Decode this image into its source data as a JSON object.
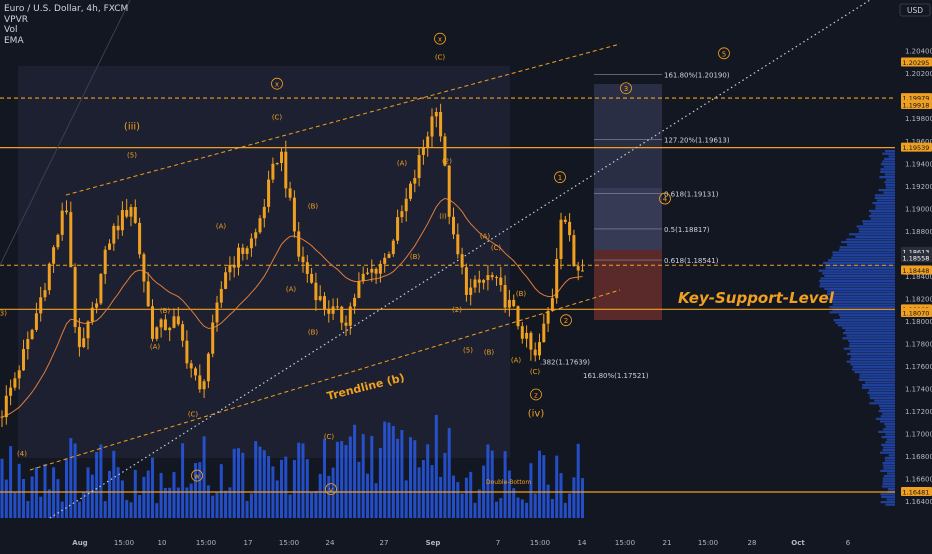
{
  "header": {
    "symbol_line": "Euro / U.S. Dollar, 4h, FXCM",
    "indicators": [
      "VPVR",
      "Vol",
      "EMA"
    ],
    "currency_button": "USD"
  },
  "chart_data": {
    "type": "candlestick",
    "title": "Euro / U.S. Dollar, 4h, FXCM",
    "ylim": [
      1.1625,
      1.2085
    ],
    "x_labels": [
      {
        "label": "Aug",
        "bold": true
      },
      {
        "label": "15:00"
      },
      {
        "label": "10"
      },
      {
        "label": "15:00"
      },
      {
        "label": "17"
      },
      {
        "label": "15:00"
      },
      {
        "label": "24"
      },
      {
        "label": "27"
      },
      {
        "label": "Sep",
        "bold": true
      },
      {
        "label": "7"
      },
      {
        "label": "15:00"
      },
      {
        "label": "14"
      },
      {
        "label": "15:00"
      },
      {
        "label": "21"
      },
      {
        "label": "15:00"
      },
      {
        "label": "28"
      },
      {
        "label": "Oct",
        "bold": true
      },
      {
        "label": "6"
      }
    ],
    "price_ticks": [
      "1.20400",
      "1.20200",
      "1.20000",
      "1.19800",
      "1.19600",
      "1.19400",
      "1.19200",
      "1.19000",
      "1.18800",
      "1.18600",
      "1.18400",
      "1.18200",
      "1.18000",
      "1.17800",
      "1.17600",
      "1.17400",
      "1.17200",
      "1.17000",
      "1.16800",
      "1.16600",
      "1.16400"
    ],
    "price_badges": [
      {
        "value": "1.20295",
        "color": "#f0a020"
      },
      {
        "value": "1.19979",
        "color": "#f0a020"
      },
      {
        "value": "1.19918",
        "color": "#f0a020"
      },
      {
        "value": "1.19539",
        "color": "#f0a020"
      },
      {
        "value": "1.18613",
        "color": "#2a2e39"
      },
      {
        "value": "1.18558",
        "color": "#2a2e39"
      },
      {
        "value": "02:28:41",
        "color": "#2a2e39"
      },
      {
        "value": "1.18448",
        "color": "#f0a020"
      },
      {
        "value": "1.18103",
        "color": "#f0a020"
      },
      {
        "value": "1.18070",
        "color": "#f0a020"
      },
      {
        "value": "1.16481",
        "color": "#f0a020"
      }
    ],
    "horizontal_levels": [
      1.19979,
      1.19539,
      1.18495,
      1.18103,
      1.16481
    ],
    "fib_labels": [
      {
        "text": "161.80%(1.20190)",
        "price": 1.2019
      },
      {
        "text": "127.20%(1.19613)",
        "price": 1.19613
      },
      {
        "text": "0.618(1.19131)",
        "price": 1.19131
      },
      {
        "text": "0.5(1.18817)",
        "price": 1.18817
      },
      {
        "text": "0.618(1.18541)",
        "price": 1.18541
      },
      {
        "text": ".382(1.17639)",
        "price": 1.17639
      },
      {
        "text": "161.80%(1.17521)",
        "price": 1.17521
      }
    ],
    "wave_labels": [
      {
        "text": "(iii)",
        "price": 1.197
      },
      {
        "text": "(iv)",
        "price": 1.1715
      },
      {
        "text": "(3)",
        "price": 1.1805
      },
      {
        "text": "(4)",
        "price": 1.168
      },
      {
        "text": "(5)",
        "price": 1.1945
      },
      {
        "text": "(A)",
        "price": 1.1775
      },
      {
        "text": "(B)",
        "price": 1.1807
      },
      {
        "text": "(C)",
        "price": 1.1715
      },
      {
        "text": "(B)",
        "price": 1.1788
      },
      {
        "text": "(C)",
        "price": 1.1979
      },
      {
        "text": "(B)",
        "price": 1.19
      },
      {
        "text": "(A)",
        "price": 1.1882
      },
      {
        "text": "(A)",
        "price": 1.1826
      },
      {
        "text": "(C)",
        "price": 1.1695
      },
      {
        "text": "(A)",
        "price": 1.1938
      },
      {
        "text": "(B)",
        "price": 1.1855
      },
      {
        "text": "(C)",
        "price": 1.2032
      },
      {
        "text": "(I)",
        "price": 1.1891
      },
      {
        "text": "(2)",
        "price": 1.194
      },
      {
        "text": "(2)",
        "price": 1.1808
      },
      {
        "text": "(A)",
        "price": 1.1873
      },
      {
        "text": "(C)",
        "price": 1.1863
      },
      {
        "text": "(B)",
        "price": 1.1822
      },
      {
        "text": "(A)",
        "price": 1.1763
      },
      {
        "text": "(C)",
        "price": 1.1753
      },
      {
        "text": "(5)",
        "price": 1.1772
      },
      {
        "text": "(B)",
        "price": 1.177
      }
    ],
    "circle_labels": [
      {
        "text": "x",
        "price": 1.2008
      },
      {
        "text": "x",
        "price": 1.2048
      },
      {
        "text": "w",
        "price": 1.166
      },
      {
        "text": "v",
        "price": 1.1648
      },
      {
        "text": "z",
        "price": 1.1732
      },
      {
        "text": "1",
        "price": 1.1925
      },
      {
        "text": "2",
        "price": 1.1798
      },
      {
        "text": "3",
        "price": 1.2004
      },
      {
        "text": "4",
        "price": 1.1906
      },
      {
        "text": "5",
        "price": 1.2035
      }
    ],
    "annotations": [
      "Trendline (b)",
      "Key-Support-Level",
      "Double-Bottom"
    ]
  },
  "colors": {
    "background": "#131722",
    "candle": "#f0a020",
    "volume": "#2962ff",
    "level_line": "#f0a020",
    "ema": "#e07b3a",
    "key_support_text": "#f0a020"
  }
}
